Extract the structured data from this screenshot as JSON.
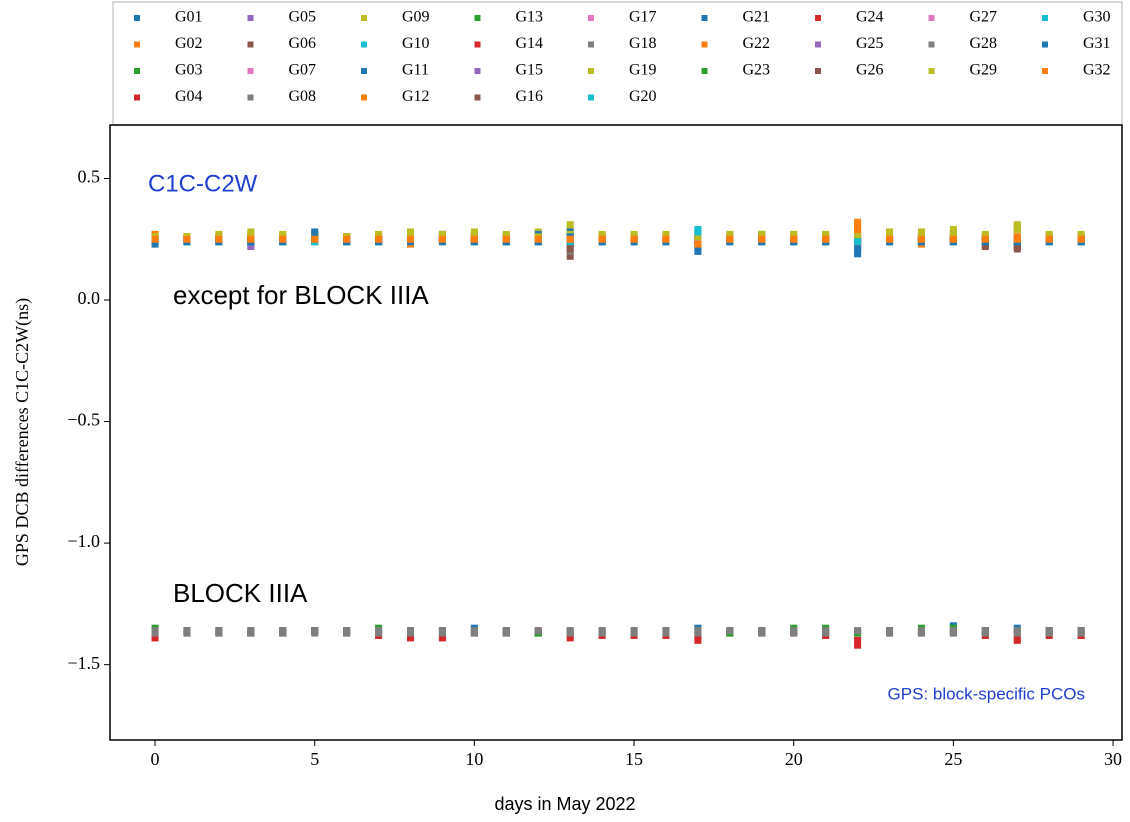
{
  "chart_data": {
    "type": "scatter",
    "x_label": "days in May 2022",
    "y_label": "GPS DCB differences C1C-C2W(ns)",
    "annotations": [
      {
        "text": "C1C-C2W",
        "color": "#1f3fd0"
      },
      {
        "text": "except for BLOCK IIIA",
        "color": "#000000"
      },
      {
        "text": "BLOCK IIIA",
        "color": "#000000"
      },
      {
        "text": "GPS: block-specific PCOs",
        "color": "#1f3fd0"
      }
    ],
    "xlim": [
      -1.41,
      30.28
    ],
    "ylim": [
      -1.81,
      0.72
    ],
    "xticks": [
      0,
      5,
      10,
      15,
      20,
      25,
      30
    ],
    "yticks": [
      0.5,
      {
        "value": 0,
        "label": "0.0"
      },
      {
        "value": -0.5,
        "label": "−0.5"
      },
      {
        "value": -1.0,
        "label": "−1.0"
      },
      {
        "value": -1.5,
        "label": "−1.5"
      }
    ],
    "x": [
      0,
      1,
      2,
      3,
      4,
      5,
      6,
      7,
      8,
      9,
      10,
      11,
      12,
      13,
      14,
      15,
      16,
      17,
      18,
      19,
      20,
      21,
      22,
      23,
      24,
      25,
      26,
      27,
      28,
      29
    ],
    "series": [
      {
        "name": "G01",
        "color": "#1f77b4",
        "values": [
          0.24,
          0.25,
          0.25,
          0.23,
          0.25,
          0.28,
          0.25,
          0.24,
          0.25,
          0.26,
          0.25,
          0.25,
          0.26,
          0.27,
          0.24,
          0.25,
          0.25,
          0.21,
          0.25,
          0.26,
          0.24,
          0.25,
          0.2,
          0.24,
          0.25,
          0.26,
          0.24,
          0.23,
          0.25,
          0.25
        ]
      },
      {
        "name": "G02",
        "color": "#ff7f0e",
        "values": [
          0.26,
          0.26,
          0.25,
          0.26,
          0.26,
          0.26,
          0.25,
          0.26,
          0.26,
          0.25,
          0.27,
          0.26,
          0.25,
          0.25,
          0.26,
          0.26,
          0.25,
          0.25,
          0.25,
          0.26,
          0.25,
          0.26,
          0.32,
          0.25,
          0.26,
          0.27,
          0.25,
          0.26,
          0.26,
          0.26
        ]
      },
      {
        "name": "G03",
        "color": "#2ca02c",
        "values": [
          0.25,
          0.24,
          0.25,
          0.25,
          0.25,
          0.26,
          0.25,
          0.25,
          0.24,
          0.25,
          0.25,
          0.25,
          0.26,
          0.24,
          0.25,
          0.24,
          0.25,
          0.24,
          0.26,
          0.27,
          0.25,
          0.25,
          0.24,
          0.25,
          0.26,
          0.25,
          0.26,
          0.29,
          0.25,
          0.25
        ]
      },
      {
        "name": "G04",
        "color": "#d62728",
        "values": [
          -1.39,
          -1.37,
          -1.37,
          -1.37,
          -1.37,
          -1.36,
          -1.37,
          -1.38,
          -1.39,
          -1.39,
          -1.37,
          -1.37,
          -1.37,
          -1.39,
          -1.38,
          -1.38,
          -1.38,
          -1.4,
          -1.37,
          -1.37,
          -1.37,
          -1.38,
          -1.42,
          -1.37,
          -1.37,
          -1.36,
          -1.38,
          -1.4,
          -1.38,
          -1.38
        ]
      },
      {
        "name": "G05",
        "color": "#9467bd",
        "values": [
          0.24,
          0.24,
          0.24,
          0.22,
          0.24,
          0.25,
          0.24,
          0.24,
          0.25,
          0.25,
          0.25,
          0.24,
          0.24,
          0.23,
          0.24,
          0.24,
          0.24,
          0.23,
          0.24,
          0.24,
          0.24,
          0.24,
          0.22,
          0.24,
          0.24,
          0.24,
          0.23,
          0.22,
          0.24,
          0.24
        ]
      },
      {
        "name": "G06",
        "color": "#8c564b",
        "values": [
          0.26,
          0.25,
          0.26,
          0.25,
          0.26,
          0.26,
          0.26,
          0.25,
          0.26,
          0.27,
          0.26,
          0.26,
          0.25,
          0.18,
          0.26,
          0.26,
          0.26,
          0.26,
          0.25,
          0.26,
          0.25,
          0.24,
          0.25,
          0.26,
          0.26,
          0.26,
          0.22,
          0.21,
          0.26,
          0.26
        ]
      },
      {
        "name": "G07",
        "color": "#e377c2",
        "values": [
          0.25,
          0.25,
          0.25,
          0.24,
          0.25,
          0.25,
          0.25,
          0.25,
          0.25,
          0.25,
          0.25,
          0.25,
          0.25,
          0.24,
          0.25,
          0.25,
          0.25,
          0.24,
          0.25,
          0.25,
          0.25,
          0.25,
          0.24,
          0.25,
          0.25,
          0.25,
          0.25,
          0.25,
          0.25,
          0.25
        ]
      },
      {
        "name": "G08",
        "color": "#7f7f7f",
        "values": [
          0.25,
          0.25,
          0.24,
          0.25,
          0.24,
          0.25,
          0.24,
          0.25,
          0.25,
          0.27,
          0.25,
          0.25,
          0.24,
          0.2,
          0.25,
          0.24,
          0.25,
          0.25,
          0.25,
          0.25,
          0.25,
          0.24,
          0.23,
          0.24,
          0.25,
          0.25,
          0.24,
          0.25,
          0.25,
          0.24
        ]
      },
      {
        "name": "G09",
        "color": "#bcbd22",
        "values": [
          0.26,
          0.26,
          0.27,
          0.28,
          0.27,
          0.27,
          0.26,
          0.27,
          0.28,
          0.27,
          0.28,
          0.27,
          0.28,
          0.31,
          0.27,
          0.27,
          0.27,
          0.28,
          0.27,
          0.27,
          0.27,
          0.27,
          0.28,
          0.28,
          0.28,
          0.29,
          0.27,
          0.31,
          0.27,
          0.27
        ]
      },
      {
        "name": "G10",
        "color": "#17becf",
        "values": [
          0.25,
          0.24,
          0.25,
          0.25,
          0.25,
          0.24,
          0.25,
          0.24,
          0.25,
          0.25,
          0.24,
          0.25,
          0.25,
          0.25,
          0.25,
          0.25,
          0.25,
          0.29,
          0.25,
          0.25,
          0.24,
          0.25,
          0.23,
          0.25,
          0.25,
          0.24,
          0.25,
          0.25,
          0.25,
          0.25
        ]
      },
      {
        "name": "G11",
        "color": "#1f77b4",
        "values": [
          -1.36,
          -1.36,
          -1.36,
          -1.37,
          -1.36,
          -1.36,
          -1.36,
          -1.36,
          -1.36,
          -1.36,
          -1.35,
          -1.36,
          -1.37,
          -1.37,
          -1.36,
          -1.36,
          -1.36,
          -1.35,
          -1.36,
          -1.36,
          -1.36,
          -1.36,
          -1.37,
          -1.36,
          -1.36,
          -1.34,
          -1.36,
          -1.35,
          -1.36,
          -1.36
        ]
      },
      {
        "name": "G12",
        "color": "#ff7f0e",
        "values": [
          0.27,
          0.26,
          0.26,
          0.25,
          0.25,
          0.24,
          0.26,
          0.26,
          0.24,
          0.25,
          0.25,
          0.25,
          0.25,
          0.25,
          0.25,
          0.25,
          0.25,
          0.22,
          0.25,
          0.24,
          0.25,
          0.25,
          0.29,
          0.24,
          0.23,
          0.24,
          0.24,
          0.25,
          0.25,
          0.25
        ]
      },
      {
        "name": "G13",
        "color": "#2ca02c",
        "values": [
          0.25,
          0.25,
          0.25,
          0.25,
          0.25,
          0.25,
          0.25,
          0.25,
          0.25,
          0.25,
          0.25,
          0.25,
          0.25,
          0.25,
          0.25,
          0.25,
          0.25,
          0.25,
          0.25,
          0.25,
          0.25,
          0.25,
          0.25,
          0.25,
          0.25,
          0.25,
          0.25,
          0.25,
          0.25,
          0.25
        ]
      },
      {
        "name": "G14",
        "color": "#d62728",
        "values": [
          -1.38,
          -1.37,
          -1.37,
          -1.37,
          -1.37,
          -1.36,
          -1.37,
          -1.37,
          -1.38,
          -1.38,
          -1.37,
          -1.37,
          -1.36,
          -1.38,
          -1.37,
          -1.37,
          -1.37,
          -1.38,
          -1.37,
          -1.37,
          -1.37,
          -1.37,
          -1.4,
          -1.37,
          -1.37,
          -1.37,
          -1.37,
          -1.39,
          -1.37,
          -1.38
        ]
      },
      {
        "name": "G15",
        "color": "#9467bd",
        "values": [
          0.25,
          0.25,
          0.25,
          0.24,
          0.25,
          0.25,
          0.25,
          0.25,
          0.25,
          0.25,
          0.25,
          0.25,
          0.25,
          0.23,
          0.25,
          0.25,
          0.25,
          0.24,
          0.25,
          0.25,
          0.25,
          0.25,
          0.24,
          0.25,
          0.25,
          0.25,
          0.25,
          0.24,
          0.25,
          0.25
        ]
      },
      {
        "name": "G16",
        "color": "#8c564b",
        "values": [
          0.25,
          0.25,
          0.25,
          0.25,
          0.25,
          0.25,
          0.25,
          0.25,
          0.25,
          0.25,
          0.25,
          0.25,
          0.25,
          0.21,
          0.25,
          0.25,
          0.25,
          0.25,
          0.25,
          0.25,
          0.25,
          0.25,
          0.24,
          0.25,
          0.25,
          0.25,
          0.24,
          0.23,
          0.25,
          0.25
        ]
      },
      {
        "name": "G17",
        "color": "#e377c2",
        "values": [
          0.25,
          0.25,
          0.25,
          0.25,
          0.25,
          0.25,
          0.25,
          0.25,
          0.25,
          0.25,
          0.25,
          0.25,
          0.25,
          0.25,
          0.25,
          0.25,
          0.25,
          0.25,
          0.25,
          0.25,
          0.25,
          0.25,
          0.25,
          0.25,
          0.25,
          0.25,
          0.25,
          0.25,
          0.25,
          0.25
        ]
      },
      {
        "name": "G18",
        "color": "#7f7f7f",
        "values": [
          -1.37,
          -1.37,
          -1.37,
          -1.37,
          -1.37,
          -1.37,
          -1.37,
          -1.37,
          -1.37,
          -1.37,
          -1.37,
          -1.37,
          -1.37,
          -1.37,
          -1.37,
          -1.37,
          -1.37,
          -1.37,
          -1.37,
          -1.37,
          -1.37,
          -1.37,
          -1.37,
          -1.37,
          -1.37,
          -1.37,
          -1.37,
          -1.37,
          -1.37,
          -1.37
        ]
      },
      {
        "name": "G19",
        "color": "#bcbd22",
        "values": [
          0.26,
          0.26,
          0.26,
          0.27,
          0.26,
          0.26,
          0.26,
          0.26,
          0.27,
          0.26,
          0.27,
          0.26,
          0.26,
          0.29,
          0.26,
          0.26,
          0.26,
          0.27,
          0.26,
          0.26,
          0.26,
          0.26,
          0.26,
          0.27,
          0.27,
          0.28,
          0.26,
          0.29,
          0.26,
          0.26
        ]
      },
      {
        "name": "G20",
        "color": "#17becf",
        "values": [
          0.24,
          0.24,
          0.24,
          0.24,
          0.24,
          0.24,
          0.24,
          0.24,
          0.24,
          0.24,
          0.24,
          0.24,
          0.24,
          0.24,
          0.24,
          0.24,
          0.24,
          0.27,
          0.24,
          0.24,
          0.24,
          0.24,
          0.22,
          0.24,
          0.24,
          0.24,
          0.24,
          0.24,
          0.24,
          0.24
        ]
      },
      {
        "name": "G21",
        "color": "#1f77b4",
        "values": [
          0.23,
          0.24,
          0.24,
          0.24,
          0.24,
          0.27,
          0.24,
          0.24,
          0.24,
          0.25,
          0.24,
          0.24,
          0.27,
          0.28,
          0.24,
          0.24,
          0.24,
          0.2,
          0.24,
          0.24,
          0.24,
          0.24,
          0.19,
          0.24,
          0.24,
          0.25,
          0.25,
          0.25,
          0.24,
          0.24
        ]
      },
      {
        "name": "G22",
        "color": "#ff7f0e",
        "values": [
          0.26,
          0.25,
          0.26,
          0.26,
          0.25,
          0.25,
          0.26,
          0.25,
          0.23,
          0.24,
          0.26,
          0.25,
          0.24,
          0.25,
          0.26,
          0.25,
          0.26,
          0.24,
          0.26,
          0.26,
          0.26,
          0.26,
          0.31,
          0.26,
          0.26,
          0.25,
          0.26,
          0.26,
          0.26,
          0.26
        ]
      },
      {
        "name": "G23",
        "color": "#2ca02c",
        "values": [
          -1.35,
          -1.36,
          -1.36,
          -1.36,
          -1.36,
          -1.36,
          -1.36,
          -1.35,
          -1.36,
          -1.36,
          -1.36,
          -1.36,
          -1.37,
          -1.36,
          -1.36,
          -1.36,
          -1.36,
          -1.36,
          -1.37,
          -1.36,
          -1.35,
          -1.35,
          -1.37,
          -1.36,
          -1.35,
          -1.35,
          -1.36,
          -1.36,
          -1.36,
          -1.36
        ]
      },
      {
        "name": "G24",
        "color": "#d62728",
        "values": [
          0.25,
          0.25,
          0.25,
          0.25,
          0.25,
          0.25,
          0.25,
          0.25,
          0.25,
          0.25,
          0.25,
          0.25,
          0.25,
          0.25,
          0.25,
          0.25,
          0.25,
          0.25,
          0.25,
          0.25,
          0.25,
          0.25,
          0.25,
          0.25,
          0.25,
          0.25,
          0.25,
          0.25,
          0.25,
          0.25
        ]
      },
      {
        "name": "G25",
        "color": "#9467bd",
        "values": [
          0.25,
          0.25,
          0.25,
          0.25,
          0.25,
          0.25,
          0.25,
          0.25,
          0.25,
          0.25,
          0.25,
          0.25,
          0.25,
          0.25,
          0.25,
          0.25,
          0.25,
          0.25,
          0.25,
          0.25,
          0.25,
          0.25,
          0.25,
          0.25,
          0.25,
          0.25,
          0.25,
          0.25,
          0.25,
          0.25
        ]
      },
      {
        "name": "G26",
        "color": "#8c564b",
        "values": [
          0.25,
          0.25,
          0.25,
          0.25,
          0.25,
          0.25,
          0.25,
          0.25,
          0.25,
          0.25,
          0.25,
          0.25,
          0.25,
          0.23,
          0.25,
          0.25,
          0.25,
          0.25,
          0.25,
          0.25,
          0.25,
          0.24,
          0.23,
          0.25,
          0.25,
          0.25,
          0.23,
          0.22,
          0.25,
          0.25
        ]
      },
      {
        "name": "G27",
        "color": "#e377c2",
        "values": [
          0.25,
          0.25,
          0.25,
          0.25,
          0.25,
          0.25,
          0.25,
          0.25,
          0.25,
          0.25,
          0.25,
          0.25,
          0.25,
          0.25,
          0.25,
          0.25,
          0.25,
          0.25,
          0.25,
          0.25,
          0.25,
          0.25,
          0.25,
          0.25,
          0.25,
          0.25,
          0.25,
          0.25,
          0.25,
          0.25
        ]
      },
      {
        "name": "G28",
        "color": "#7f7f7f",
        "values": [
          -1.36,
          -1.36,
          -1.36,
          -1.36,
          -1.36,
          -1.36,
          -1.36,
          -1.36,
          -1.36,
          -1.36,
          -1.36,
          -1.36,
          -1.36,
          -1.36,
          -1.36,
          -1.36,
          -1.36,
          -1.36,
          -1.36,
          -1.36,
          -1.36,
          -1.36,
          -1.36,
          -1.36,
          -1.36,
          -1.36,
          -1.36,
          -1.36,
          -1.36,
          -1.36
        ]
      },
      {
        "name": "G29",
        "color": "#bcbd22",
        "values": [
          0.26,
          0.26,
          0.26,
          0.26,
          0.26,
          0.26,
          0.26,
          0.26,
          0.26,
          0.26,
          0.26,
          0.26,
          0.26,
          0.27,
          0.26,
          0.26,
          0.26,
          0.26,
          0.26,
          0.26,
          0.26,
          0.26,
          0.26,
          0.26,
          0.26,
          0.27,
          0.26,
          0.3,
          0.26,
          0.26
        ]
      },
      {
        "name": "G30",
        "color": "#17becf",
        "values": [
          0.24,
          0.24,
          0.24,
          0.24,
          0.24,
          0.24,
          0.24,
          0.24,
          0.24,
          0.24,
          0.24,
          0.24,
          0.24,
          0.24,
          0.24,
          0.24,
          0.24,
          0.28,
          0.24,
          0.24,
          0.24,
          0.24,
          0.24,
          0.24,
          0.24,
          0.24,
          0.24,
          0.24,
          0.24,
          0.24
        ]
      },
      {
        "name": "G31",
        "color": "#1f77b4",
        "values": [
          0.24,
          0.24,
          0.24,
          0.24,
          0.24,
          0.26,
          0.24,
          0.24,
          0.24,
          0.24,
          0.24,
          0.24,
          0.24,
          0.26,
          0.24,
          0.24,
          0.24,
          0.22,
          0.24,
          0.24,
          0.24,
          0.24,
          0.21,
          0.24,
          0.24,
          0.24,
          0.24,
          0.24,
          0.24,
          0.24
        ]
      },
      {
        "name": "G32",
        "color": "#ff7f0e",
        "values": [
          0.25,
          0.25,
          0.25,
          0.25,
          0.25,
          0.25,
          0.25,
          0.25,
          0.25,
          0.25,
          0.25,
          0.25,
          0.25,
          0.25,
          0.25,
          0.25,
          0.25,
          0.23,
          0.25,
          0.25,
          0.25,
          0.25,
          0.3,
          0.25,
          0.25,
          0.25,
          0.25,
          0.25,
          0.25,
          0.25
        ]
      }
    ]
  }
}
